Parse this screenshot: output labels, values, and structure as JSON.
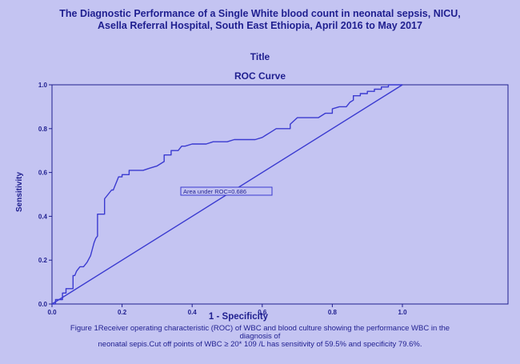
{
  "header": {
    "title_line1": "The Diagnostic Performance of a Single White blood count in neonatal sepsis, NICU,",
    "title_line2": "Asella Referral Hospital, South East Ethiopia, April 2016 to May 2017",
    "block_title": "Title"
  },
  "chart_data": {
    "type": "line",
    "title": "ROC Curve",
    "xlabel": "1 - Specificity",
    "ylabel": "Sensitivity",
    "xlim": [
      0,
      1
    ],
    "ylim": [
      0,
      1
    ],
    "x_ticks": [
      "0.0",
      "0.2",
      "0.4",
      "0.6",
      "0.8",
      "1.0"
    ],
    "y_ticks": [
      "0.0",
      "0.2",
      "0.4",
      "0.6",
      "0.8",
      "1.0"
    ],
    "annotation": "Area  under ROC=0.686",
    "grid": false,
    "series": [
      {
        "x": [
          0,
          0.01,
          0.01,
          0.03,
          0.03,
          0.04,
          0.04,
          0.06,
          0.06,
          0.065,
          0.07,
          0.075,
          0.08,
          0.09,
          0.1,
          0.11,
          0.115,
          0.12,
          0.125,
          0.13,
          0.13,
          0.14,
          0.15,
          0.15,
          0.16,
          0.17,
          0.175,
          0.18,
          0.185,
          0.19,
          0.2,
          0.2,
          0.22,
          0.22,
          0.24,
          0.24,
          0.26,
          0.28,
          0.3,
          0.32,
          0.32,
          0.34,
          0.34,
          0.36,
          0.37,
          0.38,
          0.4,
          0.42,
          0.44,
          0.46,
          0.48,
          0.5,
          0.52,
          0.54,
          0.56,
          0.58,
          0.6,
          0.61,
          0.62,
          0.64,
          0.66,
          0.68,
          0.68,
          0.7,
          0.72,
          0.74,
          0.76,
          0.78,
          0.8,
          0.8,
          0.82,
          0.84,
          0.85,
          0.86,
          0.86,
          0.88,
          0.88,
          0.9,
          0.9,
          0.92,
          0.92,
          0.94,
          0.94,
          0.96,
          0.96,
          0.98,
          0.98,
          1.0
        ],
        "y": [
          0,
          0,
          0.02,
          0.02,
          0.05,
          0.05,
          0.07,
          0.07,
          0.13,
          0.13,
          0.15,
          0.16,
          0.17,
          0.17,
          0.19,
          0.22,
          0.25,
          0.28,
          0.3,
          0.31,
          0.41,
          0.41,
          0.41,
          0.48,
          0.5,
          0.52,
          0.52,
          0.54,
          0.56,
          0.58,
          0.58,
          0.59,
          0.59,
          0.61,
          0.61,
          0.61,
          0.61,
          0.62,
          0.63,
          0.65,
          0.68,
          0.68,
          0.7,
          0.7,
          0.72,
          0.72,
          0.73,
          0.73,
          0.73,
          0.74,
          0.74,
          0.74,
          0.75,
          0.75,
          0.75,
          0.75,
          0.76,
          0.77,
          0.78,
          0.8,
          0.8,
          0.8,
          0.82,
          0.85,
          0.85,
          0.85,
          0.85,
          0.87,
          0.87,
          0.89,
          0.9,
          0.9,
          0.92,
          0.93,
          0.95,
          0.95,
          0.96,
          0.96,
          0.97,
          0.97,
          0.98,
          0.98,
          0.99,
          0.99,
          1.0,
          1.0,
          1.0,
          1.0
        ]
      },
      {
        "x": [
          0,
          1
        ],
        "y": [
          0,
          1
        ]
      }
    ]
  },
  "caption": {
    "line1": "Figure 1Receiver operating characteristic (ROC) of WBC and blood culture showing the performance WBC in the",
    "line2": "diagnosis of",
    "line3": "neonatal sepis.Cut off points of WBC ≥ 20* 109 /L has sensitivity of 59.5% and specificity 79.6%."
  },
  "colors": {
    "background": "#c4c4f2",
    "text": "#1f1f8f",
    "curve": "#3a3ad0",
    "axis": "#1f1f8f"
  }
}
